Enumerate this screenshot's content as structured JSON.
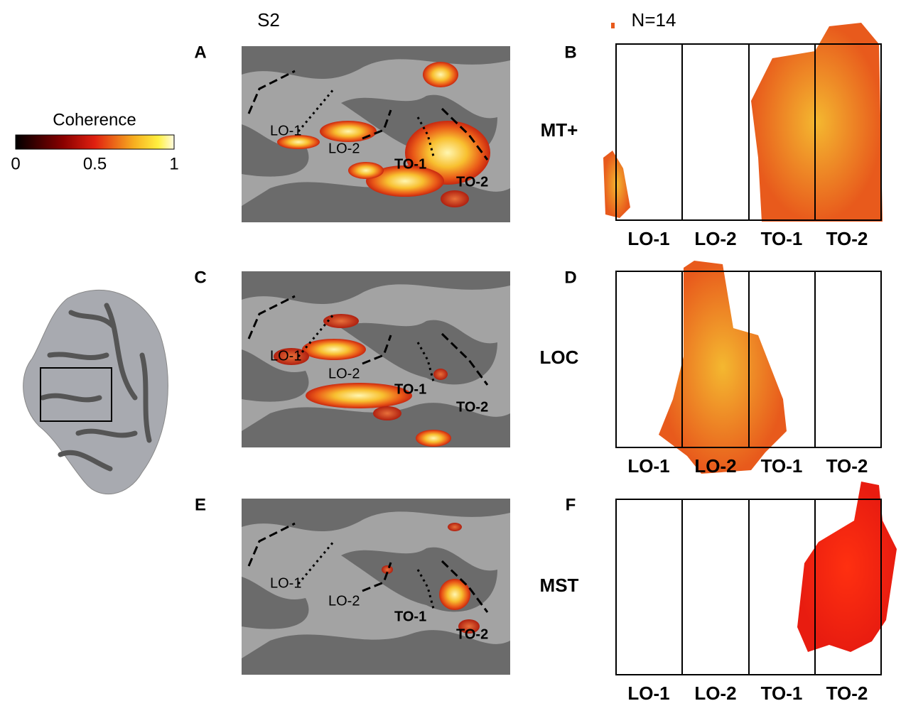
{
  "subject_label": "S2",
  "group_label": "N=14",
  "colorbar": {
    "label": "Coherence",
    "lim": [
      0,
      1
    ],
    "ticks": [
      0,
      0.5,
      1
    ]
  },
  "rows": [
    {
      "name": "MT+",
      "left_panel": "A",
      "right_panel": "B",
      "map_labels": [
        "LO-1",
        "LO-2",
        "TO-1",
        "TO-2"
      ],
      "columns": [
        "LO-1",
        "LO-2",
        "TO-1",
        "TO-2"
      ]
    },
    {
      "name": "LOC",
      "left_panel": "C",
      "right_panel": "D",
      "map_labels": [
        "LO-1",
        "LO-2",
        "TO-1",
        "TO-2"
      ],
      "columns": [
        "LO-1",
        "LO-2",
        "TO-1",
        "TO-2"
      ]
    },
    {
      "name": "MST",
      "left_panel": "E",
      "right_panel": "F",
      "map_labels": [
        "LO-1",
        "LO-2",
        "TO-1",
        "TO-2"
      ],
      "columns": [
        "LO-1",
        "LO-2",
        "TO-1",
        "TO-2"
      ]
    }
  ]
}
